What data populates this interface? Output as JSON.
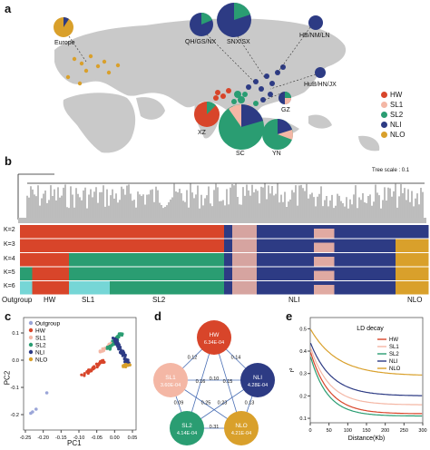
{
  "panels": {
    "a": "a",
    "b": "b",
    "c": "c",
    "d": "d",
    "e": "e"
  },
  "colors": {
    "HW": "#d8452a",
    "SL1": "#f4b7a5",
    "SL2": "#2a9d72",
    "NLI": "#2d3b84",
    "NLO": "#d9a02b",
    "Outgroup": "#9aa5d8"
  },
  "map": {
    "regions": [
      "Europe",
      "QH/GS/NX",
      "SNX/SX",
      "HB/NM/LN",
      "HuB/HN/JX",
      "GZ",
      "XZ",
      "SC",
      "YN"
    ],
    "legend": [
      "HW",
      "SL1",
      "SL2",
      "NLI",
      "NLO"
    ]
  },
  "tree": {
    "scale": "Tree scale : 0.1",
    "k_labels": [
      "K=2",
      "K=3",
      "K=4",
      "K=5",
      "K=6"
    ],
    "groups": [
      "Outgroup",
      "HW",
      "SL1",
      "SL2",
      "NLI",
      "NLO"
    ]
  },
  "pca": {
    "xlabel": "PC1",
    "ylabel": "PC2",
    "xticks": [
      "-0.25",
      "-0.20",
      "-0.15",
      "-0.10",
      "-0.05",
      "0.00",
      "0.05"
    ],
    "yticks": [
      "0.1",
      "0.0",
      "-0.1",
      "-0.2"
    ],
    "legend": [
      "Outgroup",
      "HW",
      "SL1",
      "SL2",
      "NLI",
      "NLO"
    ]
  },
  "network": {
    "nodes": [
      {
        "name": "HW",
        "value": "6.34E-04"
      },
      {
        "name": "SL1",
        "value": "3.60E-04"
      },
      {
        "name": "NLI",
        "value": "4.28E-04"
      },
      {
        "name": "SL2",
        "value": "4.14E-04"
      },
      {
        "name": "NLO",
        "value": "4.21E-04"
      }
    ],
    "edges": [
      {
        "a": "HW",
        "b": "SL1",
        "v": "0.12"
      },
      {
        "a": "HW",
        "b": "NLI",
        "v": "0.14"
      },
      {
        "a": "SL1",
        "b": "NLI",
        "v": "0.10"
      },
      {
        "a": "HW",
        "b": "SL2",
        "v": "0.16"
      },
      {
        "a": "HW",
        "b": "NLO",
        "v": "0.15"
      },
      {
        "a": "SL1",
        "b": "NLO",
        "v": "0.25"
      },
      {
        "a": "NLI",
        "b": "SL2",
        "v": "0.23"
      },
      {
        "a": "SL1",
        "b": "SL2",
        "v": "0.09"
      },
      {
        "a": "NLI",
        "b": "NLO",
        "v": "0.13"
      },
      {
        "a": "SL2",
        "b": "NLO",
        "v": "0.31"
      }
    ]
  },
  "chart_data": {
    "type": "line",
    "title": "LD decay",
    "xlabel": "Distance(Kb)",
    "ylabel": "r²",
    "xticks": [
      "0",
      "50",
      "100",
      "150",
      "200",
      "250",
      "300"
    ],
    "yticks": [
      "0.1",
      "0.2",
      "0.3",
      "0.4",
      "0.5"
    ],
    "xlim": [
      0,
      300
    ],
    "ylim": [
      0.08,
      0.55
    ],
    "series": [
      {
        "name": "HW",
        "color": "#d8452a",
        "r0": 0.4,
        "rinf": 0.12,
        "k": 0.02
      },
      {
        "name": "SL1",
        "color": "#f4b7a5",
        "r0": 0.42,
        "rinf": 0.16,
        "k": 0.02
      },
      {
        "name": "SL2",
        "color": "#2a9d72",
        "r0": 0.38,
        "rinf": 0.11,
        "k": 0.022
      },
      {
        "name": "NLI",
        "color": "#2d3b84",
        "r0": 0.44,
        "rinf": 0.2,
        "k": 0.018
      },
      {
        "name": "NLO",
        "color": "#d9a02b",
        "r0": 0.5,
        "rinf": 0.29,
        "k": 0.014
      }
    ]
  }
}
